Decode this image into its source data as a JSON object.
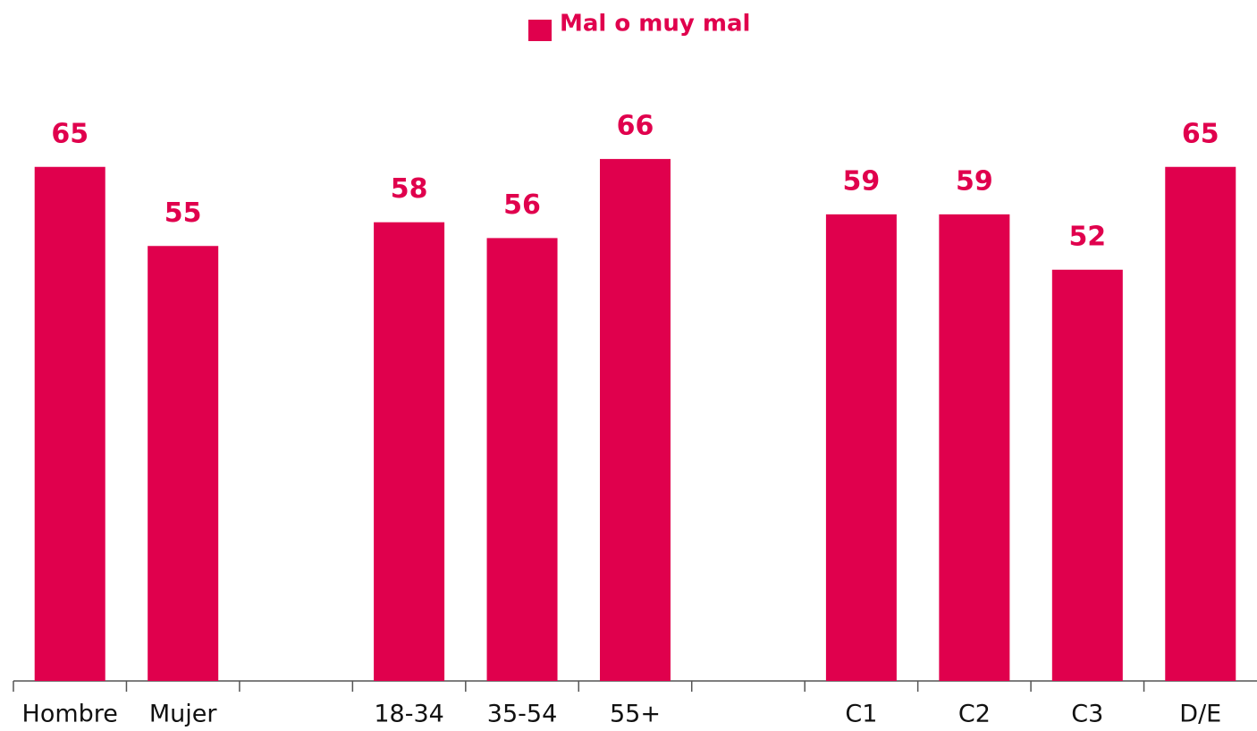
{
  "chart_data": {
    "type": "bar",
    "categories": [
      "Hombre",
      "Mujer",
      null,
      "18-34",
      "35-54",
      "55+",
      null,
      "C1",
      "C2",
      "C3",
      "D/E"
    ],
    "series": [
      {
        "name": "Mal o muy mal",
        "color": "#e0004d",
        "values": [
          65,
          55,
          null,
          58,
          56,
          66,
          null,
          59,
          59,
          52,
          65
        ]
      }
    ],
    "ylim": [
      0,
      70
    ]
  }
}
